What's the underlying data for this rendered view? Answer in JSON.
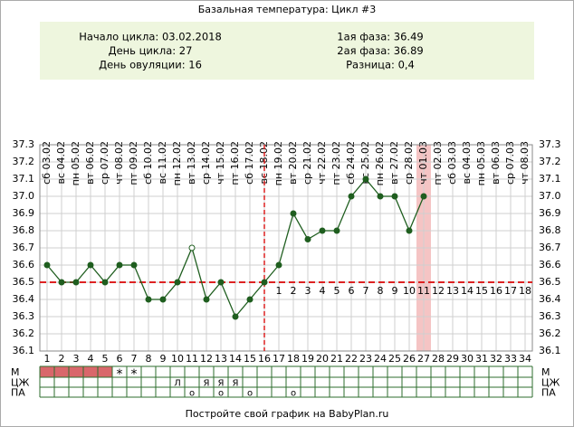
{
  "chart_data": {
    "type": "line",
    "title": "Базальная температура: Цикл #3",
    "info_left": [
      "Начало цикла: 03.02.2018",
      "День цикла: 27",
      "День овуляции: 16"
    ],
    "info_right": [
      "1ая фаза: 36.49",
      "2ая фаза: 36.89",
      "Разница: 0,4"
    ],
    "dates": [
      "сб 03.02",
      "вс 04.02",
      "пн 05.02",
      "вт 06.02",
      "ср 07.02",
      "чт 08.02",
      "пт 09.02",
      "сб 10.02",
      "вс 11.02",
      "пн 12.02",
      "вт 13.02",
      "ср 14.02",
      "чт 15.02",
      "пт 16.02",
      "сб 17.02",
      "вс 18.02",
      "пн 19.02",
      "вт 20.02",
      "ср 21.02",
      "чт 22.02",
      "пт 23.02",
      "сб 24.02",
      "вс 25.02",
      "пн 26.02",
      "вт 27.02",
      "ср 28.02",
      "чт 01.03",
      "пт 02.03",
      "сб 03.03",
      "вс 04.03",
      "пн 05.03",
      "вт 06.03",
      "ср 07.03",
      "чт 08.03"
    ],
    "x": [
      1,
      2,
      3,
      4,
      5,
      6,
      7,
      8,
      9,
      10,
      11,
      12,
      13,
      14,
      15,
      16,
      17,
      18,
      19,
      20,
      21,
      22,
      23,
      24,
      25,
      26,
      27,
      28,
      29,
      30,
      31,
      32,
      33,
      34
    ],
    "values": [
      36.6,
      36.5,
      36.5,
      36.6,
      36.5,
      36.6,
      36.6,
      36.4,
      36.4,
      36.5,
      36.7,
      36.4,
      36.5,
      36.3,
      36.4,
      36.5,
      36.6,
      36.9,
      36.75,
      36.8,
      36.8,
      37.0,
      37.1,
      37.0,
      37.0,
      36.8,
      37.0,
      null,
      null,
      null,
      null,
      null,
      null,
      null
    ],
    "hollow_days": [
      11
    ],
    "color": "#1f5e1f",
    "xlim": [
      0.5,
      34.5
    ],
    "ylim": [
      36.1,
      37.3
    ],
    "yticks": [
      36.1,
      36.2,
      36.3,
      36.4,
      36.5,
      36.6,
      36.7,
      36.8,
      36.9,
      {
        "value": 37,
        "label": "37.0"
      },
      37.1,
      37.2,
      37.3
    ],
    "grid": true,
    "coverline": 36.5,
    "ovulation_day": 16,
    "highlight_day": 27,
    "phase_labels": [
      1,
      2,
      3,
      4,
      5,
      6,
      7,
      8,
      9,
      10,
      11,
      12,
      13,
      14,
      15,
      16,
      17,
      18
    ],
    "rows": [
      {
        "label": "М",
        "filled_days": [
          1,
          2,
          3,
          4,
          5
        ],
        "fill": "#d9676b",
        "mark_color": "#d9676b",
        "marks": [
          {
            "day": 6,
            "text": "*"
          },
          {
            "day": 7,
            "text": "*"
          }
        ]
      },
      {
        "label": "ЦЖ",
        "mark_color": "#333333",
        "marks": [
          {
            "day": 10,
            "text": "Л"
          },
          {
            "day": 12,
            "text": "Я"
          },
          {
            "day": 13,
            "text": "Я"
          },
          {
            "day": 14,
            "text": "Я"
          }
        ]
      },
      {
        "label": "ПА",
        "mark_color": "#d9676b",
        "marks": [
          {
            "day": 11,
            "text": "o"
          },
          {
            "day": 13,
            "text": "o"
          },
          {
            "day": 15,
            "text": "o"
          },
          {
            "day": 18,
            "text": "o"
          }
        ]
      }
    ],
    "footer": "Постройте свой график на BabyPlan.ru"
  }
}
